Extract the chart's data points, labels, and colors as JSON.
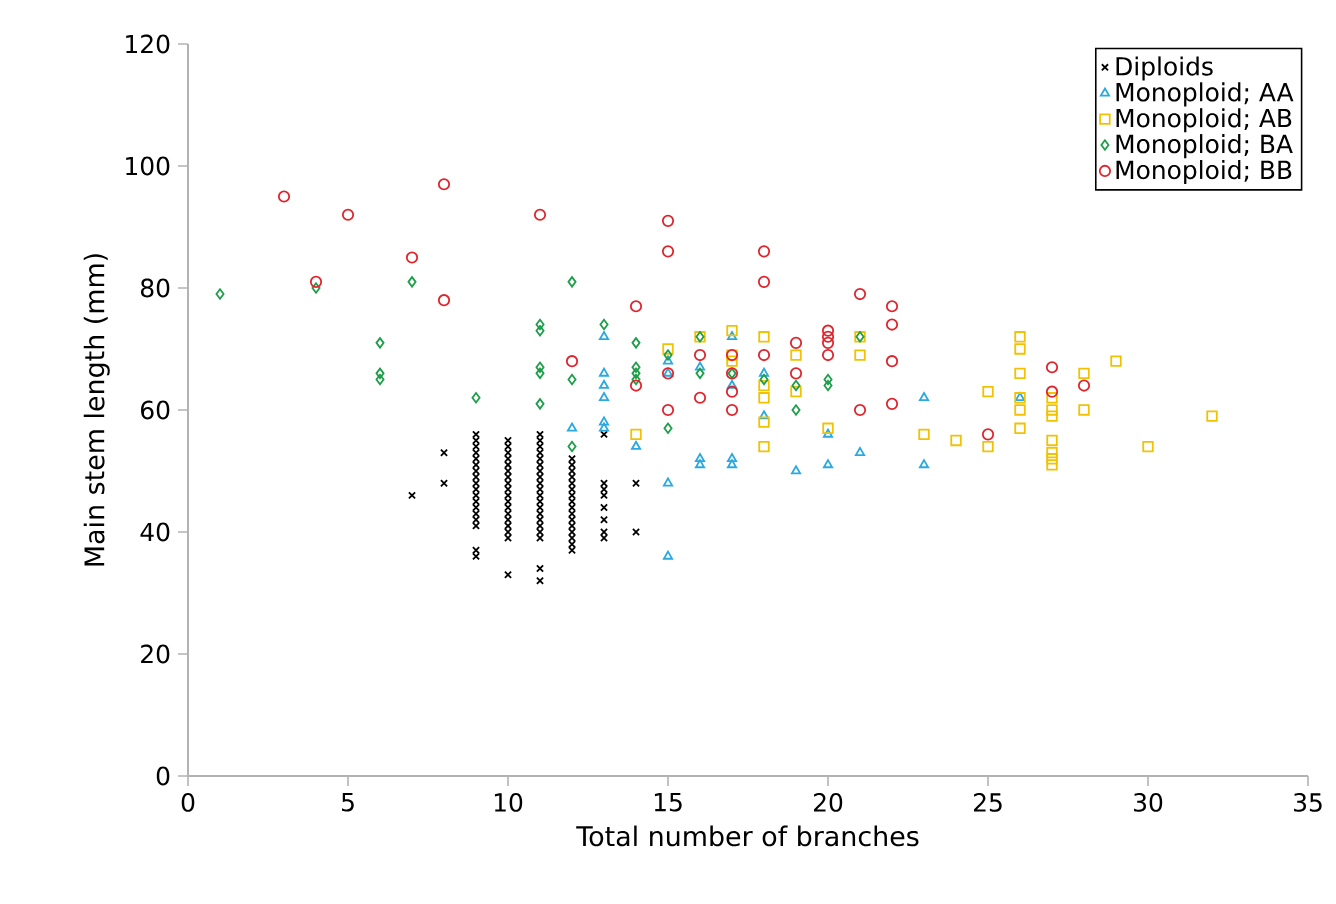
{
  "chart_data": {
    "type": "scatter",
    "xlabel": "Total number of branches",
    "ylabel": "Main stem length (mm)",
    "xlim": [
      0,
      35
    ],
    "xticks": [
      0,
      5,
      10,
      15,
      20,
      25,
      30,
      35
    ],
    "ylim": [
      0,
      120
    ],
    "yticks": [
      0,
      20,
      40,
      60,
      80,
      100,
      120
    ],
    "grid": false,
    "legend": "top right",
    "series": [
      {
        "name": "Diploids",
        "color": "#000000",
        "marker": "cross",
        "x": [
          7,
          8,
          8,
          9,
          9,
          9,
          9,
          9,
          9,
          9,
          9,
          9,
          9,
          9,
          9,
          9,
          9,
          9,
          9,
          9,
          9,
          10,
          10,
          10,
          10,
          10,
          10,
          10,
          10,
          10,
          10,
          10,
          10,
          10,
          10,
          10,
          10,
          10,
          10,
          11,
          11,
          11,
          11,
          11,
          11,
          11,
          11,
          11,
          11,
          11,
          11,
          11,
          11,
          11,
          11,
          11,
          11,
          11,
          11,
          12,
          12,
          12,
          12,
          12,
          12,
          12,
          12,
          12,
          12,
          12,
          12,
          12,
          12,
          12,
          12,
          13,
          13,
          13,
          13,
          13,
          13,
          13,
          13,
          14,
          14
        ],
        "values": [
          46,
          53,
          48,
          56,
          55,
          54,
          53,
          52,
          51,
          50,
          49,
          48,
          47,
          46,
          45,
          44,
          43,
          42,
          41,
          37,
          36,
          55,
          54,
          53,
          52,
          51,
          50,
          49,
          48,
          47,
          46,
          45,
          44,
          43,
          42,
          41,
          40,
          39,
          33,
          56,
          55,
          54,
          53,
          52,
          51,
          50,
          49,
          48,
          47,
          46,
          45,
          44,
          43,
          42,
          41,
          40,
          39,
          34,
          32,
          52,
          51,
          50,
          49,
          48,
          47,
          46,
          45,
          44,
          43,
          42,
          41,
          40,
          39,
          38,
          37,
          56,
          48,
          47,
          46,
          44,
          42,
          40,
          39,
          48,
          40
        ]
      },
      {
        "name": "Monoploid; AA",
        "color": "#29a9e0",
        "marker": "triangle",
        "x": [
          12,
          13,
          13,
          13,
          13,
          13,
          13,
          14,
          15,
          15,
          15,
          15,
          16,
          16,
          16,
          17,
          17,
          17,
          17,
          18,
          18,
          19,
          20,
          20,
          21,
          23,
          23,
          26
        ],
        "values": [
          57,
          72,
          66,
          64,
          62,
          58,
          57,
          54,
          68,
          66,
          48,
          36,
          67,
          52,
          51,
          72,
          64,
          52,
          51,
          66,
          59,
          50,
          56,
          51,
          53,
          62,
          51,
          62
        ]
      },
      {
        "name": "Monoploid; AB",
        "color": "#f2c200",
        "marker": "square",
        "x": [
          14,
          15,
          16,
          17,
          17,
          17,
          18,
          18,
          18,
          18,
          18,
          19,
          19,
          20,
          21,
          21,
          23,
          24,
          25,
          25,
          26,
          26,
          26,
          26,
          26,
          26,
          27,
          27,
          27,
          27,
          27,
          27,
          27,
          28,
          28,
          29,
          30,
          32
        ],
        "values": [
          56,
          70,
          72,
          73,
          69,
          68,
          72,
          64,
          62,
          58,
          54,
          69,
          63,
          57,
          72,
          69,
          56,
          55,
          63,
          54,
          72,
          70,
          66,
          62,
          60,
          57,
          62,
          60,
          59,
          55,
          53,
          52,
          51,
          66,
          60,
          68,
          54,
          59
        ]
      },
      {
        "name": "Monoploid; BA",
        "color": "#1f9e4a",
        "marker": "diamond",
        "x": [
          1,
          4,
          6,
          6,
          6,
          7,
          9,
          11,
          11,
          11,
          11,
          11,
          12,
          12,
          12,
          13,
          14,
          14,
          14,
          14,
          15,
          15,
          16,
          16,
          17,
          18,
          19,
          19,
          20,
          20,
          21
        ],
        "values": [
          79,
          80,
          71,
          66,
          65,
          81,
          62,
          74,
          73,
          67,
          66,
          61,
          81,
          65,
          54,
          74,
          71,
          67,
          66,
          65,
          69,
          57,
          72,
          66,
          66,
          65,
          64,
          60,
          65,
          64,
          72
        ]
      },
      {
        "name": "Monoploid; BB",
        "color": "#e0242c",
        "marker": "circle",
        "x": [
          3,
          4,
          5,
          7,
          8,
          8,
          11,
          12,
          14,
          14,
          15,
          15,
          15,
          15,
          16,
          16,
          17,
          17,
          17,
          17,
          18,
          18,
          18,
          19,
          19,
          20,
          20,
          20,
          20,
          21,
          21,
          22,
          22,
          22,
          22,
          25,
          27,
          27,
          28
        ],
        "values": [
          95,
          81,
          92,
          85,
          97,
          78,
          92,
          68,
          77,
          64,
          91,
          86,
          66,
          60,
          69,
          62,
          69,
          66,
          63,
          60,
          86,
          81,
          69,
          71,
          66,
          73,
          72,
          71,
          69,
          79,
          60,
          77,
          74,
          68,
          61,
          56,
          67,
          63,
          64
        ]
      }
    ]
  }
}
